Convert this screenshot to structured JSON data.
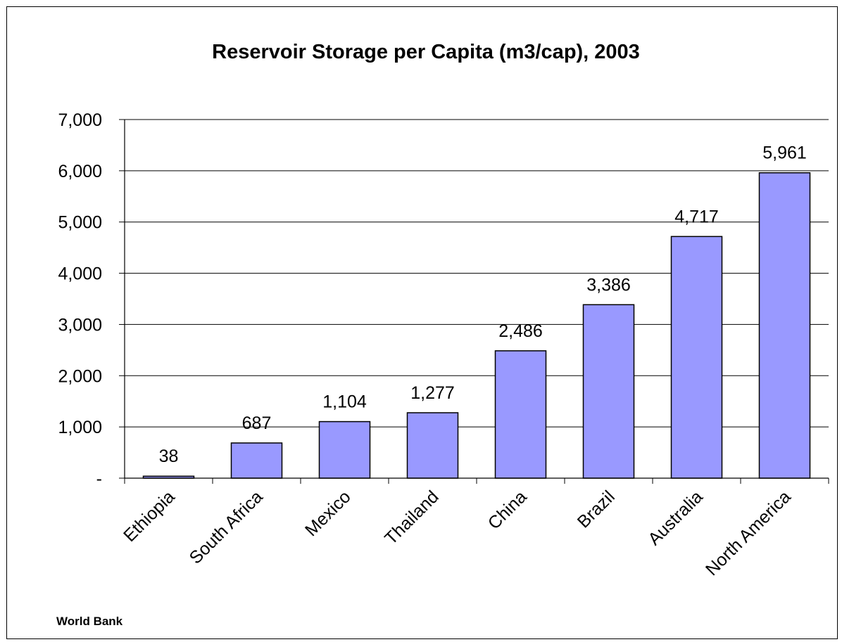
{
  "chart_data": {
    "type": "bar",
    "title": "Reservoir Storage per Capita (m3/cap), 2003",
    "categories": [
      "Ethiopia",
      "South Africa",
      "Mexico",
      "Thailand",
      "China",
      "Brazil",
      "Australia",
      "North America"
    ],
    "values": [
      38,
      687,
      1104,
      1277,
      2486,
      3386,
      4717,
      5961
    ],
    "data_labels": [
      "38",
      "687",
      "1,104",
      "1,277",
      "2,486",
      "3,386",
      "4,717",
      "5,961"
    ],
    "ylim": [
      0,
      7000
    ],
    "yticks": [
      0,
      1000,
      2000,
      3000,
      4000,
      5000,
      6000,
      7000
    ],
    "ytick_labels": [
      "-",
      "1,000",
      "2,000",
      "3,000",
      "4,000",
      "5,000",
      "6,000",
      "7,000"
    ],
    "xlabel": "",
    "ylabel": "",
    "grid": true,
    "legend": false,
    "bar_color": "#9999ff",
    "bar_edge_color": "#000000"
  },
  "source": "World Bank"
}
